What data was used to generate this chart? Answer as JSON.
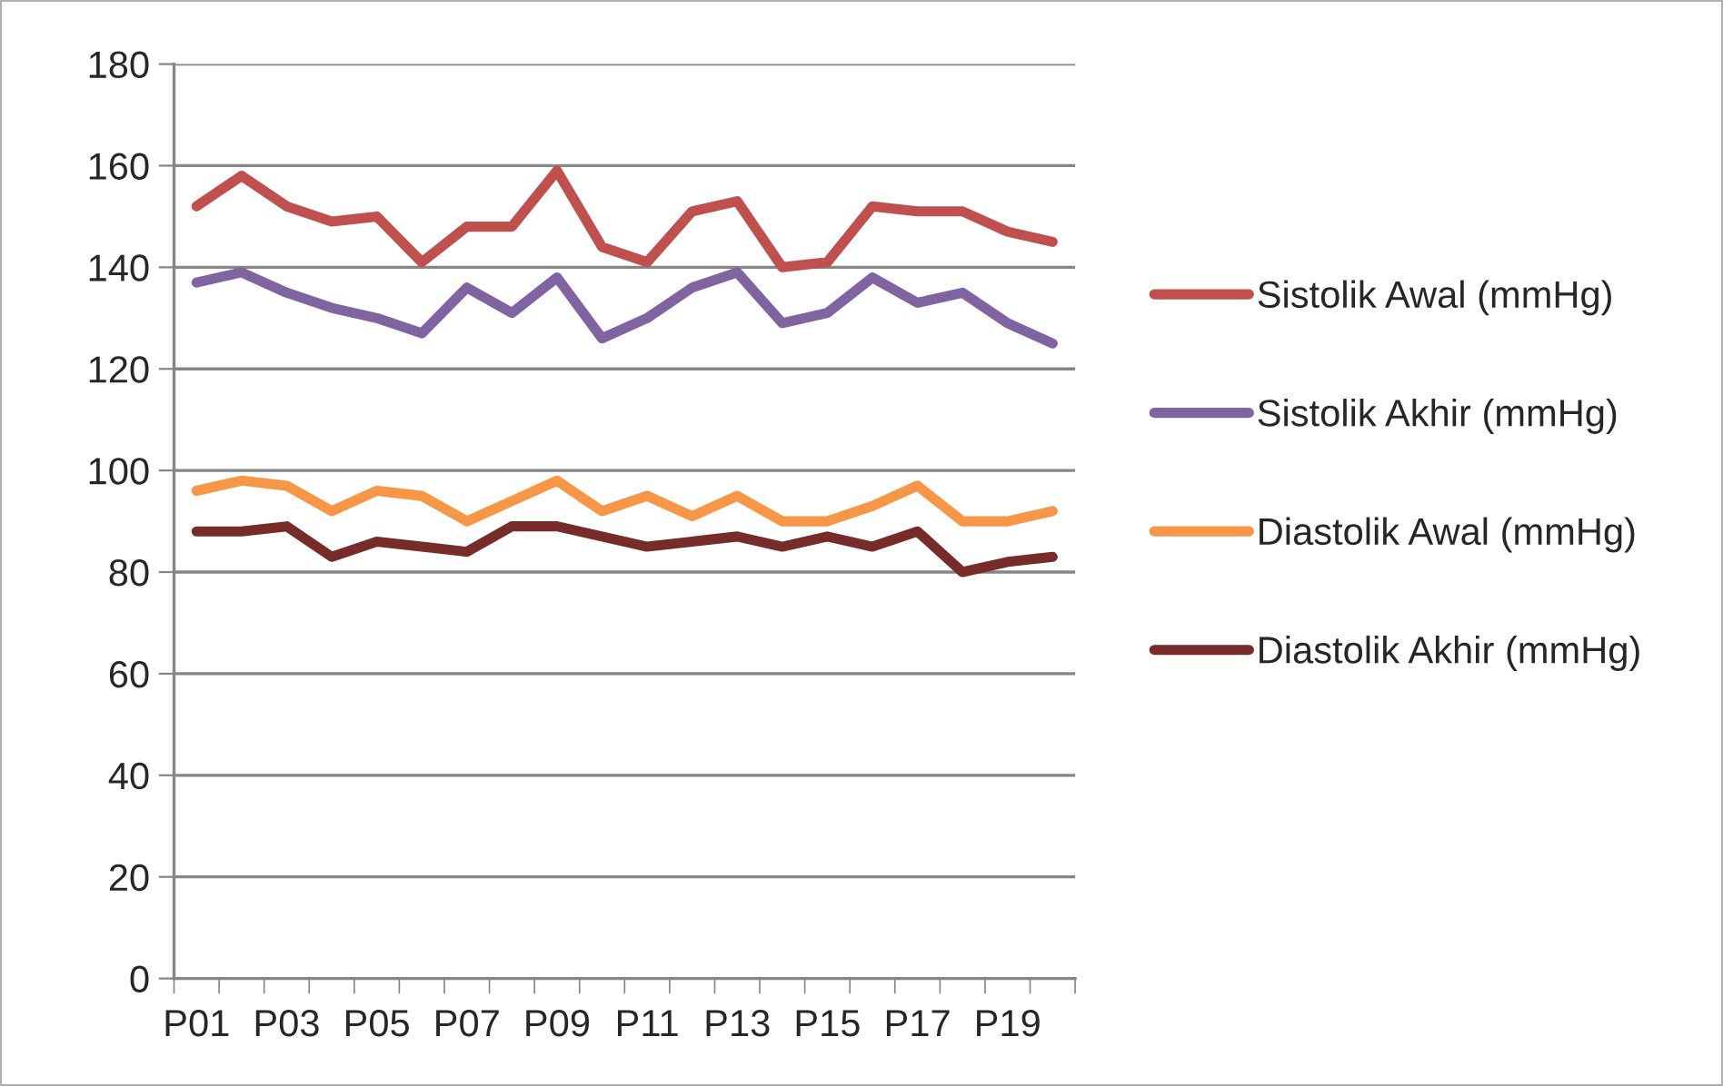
{
  "chart_data": {
    "type": "line",
    "categories": [
      "P01",
      null,
      "P03",
      null,
      "P05",
      null,
      "P07",
      null,
      "P09",
      null,
      "P11",
      null,
      "P13",
      null,
      "P15",
      null,
      "P17",
      null,
      "P19",
      null
    ],
    "series": [
      {
        "name": "Sistolik Awal (mmHg)",
        "color": "#c0504d",
        "values": [
          152,
          158,
          152,
          149,
          150,
          141,
          148,
          148,
          159,
          144,
          141,
          151,
          153,
          140,
          141,
          152,
          151,
          151,
          147,
          145
        ]
      },
      {
        "name": "Sistolik Akhir (mmHg)",
        "color": "#8064a2",
        "values": [
          137,
          139,
          135,
          132,
          130,
          127,
          136,
          131,
          138,
          126,
          130,
          136,
          139,
          129,
          131,
          138,
          133,
          135,
          129,
          125
        ]
      },
      {
        "name": "Diastolik Awal (mmHg)",
        "color": "#f79646",
        "values": [
          96,
          98,
          97,
          92,
          96,
          95,
          90,
          94,
          98,
          92,
          95,
          91,
          95,
          90,
          90,
          93,
          97,
          90,
          90,
          92
        ]
      },
      {
        "name": "Diastolik Akhir (mmHg)",
        "color": "#772c2a",
        "values": [
          88,
          88,
          89,
          83,
          86,
          85,
          84,
          89,
          89,
          87,
          85,
          86,
          87,
          85,
          87,
          85,
          88,
          80,
          82,
          83
        ]
      }
    ],
    "ylim": [
      0,
      180
    ],
    "yticks": [
      0,
      20,
      40,
      60,
      80,
      100,
      120,
      140,
      160,
      180
    ],
    "grid": "y",
    "legend": "right",
    "marker": "none",
    "line_style": "solid"
  }
}
